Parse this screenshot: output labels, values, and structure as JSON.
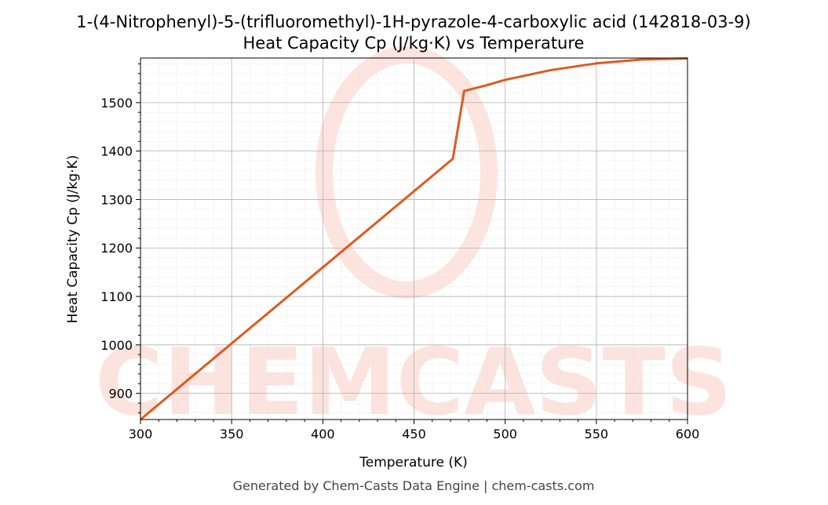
{
  "chart_data": {
    "type": "line",
    "title": "1-(4-Nitrophenyl)-5-(trifluoromethyl)-1H-pyrazole-4-carboxylic acid (142818-03-9)",
    "subtitle": "Heat Capacity Cp (J/kg·K) vs Temperature",
    "xlabel": "Temperature (K)",
    "ylabel": "Heat Capacity Cp (J/kg·K)",
    "xlim": [
      300,
      600
    ],
    "ylim": [
      846,
      1592
    ],
    "xticks": [
      300,
      350,
      400,
      450,
      500,
      550,
      600
    ],
    "yticks": [
      900,
      1000,
      1100,
      1200,
      1300,
      1400,
      1500
    ],
    "grid": true,
    "series": [
      {
        "name": "Cp",
        "color": "#e05a1e",
        "x": [
          300,
          471.3,
          477.5,
          490,
          500,
          525,
          550,
          575,
          600
        ],
        "y": [
          846,
          1384,
          1524,
          1536,
          1547,
          1567,
          1581,
          1589,
          1591
        ]
      }
    ],
    "watermark": "CHEMCASTS"
  },
  "footer": "Generated by Chem-Casts Data Engine | chem-casts.com"
}
